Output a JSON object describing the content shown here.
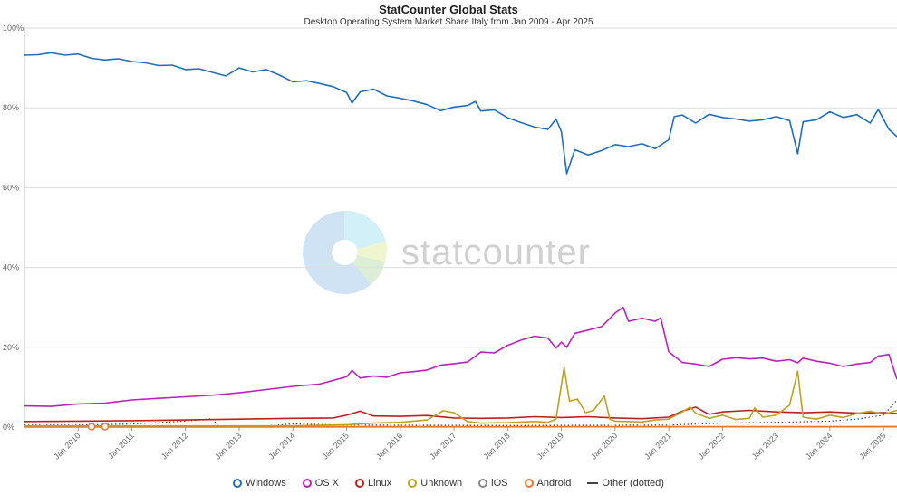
{
  "chart_data": {
    "type": "line",
    "title": "StatCounter Global Stats",
    "subtitle": "Desktop Operating System Market Share Italy from Jan 2009 - Apr 2025",
    "watermark": "statcounter",
    "ylim": [
      0,
      100
    ],
    "y_ticks": [
      "0%",
      "20%",
      "40%",
      "60%",
      "80%",
      "100%"
    ],
    "y_tick_values": [
      0,
      20,
      40,
      60,
      80,
      100
    ],
    "x_range": [
      2009.0,
      2025.25
    ],
    "x_ticks": [
      "Jan 2010",
      "Jan 2011",
      "Jan 2012",
      "Jan 2013",
      "Jan 2014",
      "Jan 2015",
      "Jan 2016",
      "Jan 2017",
      "Jan 2018",
      "Jan 2019",
      "Jan 2020",
      "Jan 2021",
      "Jan 2022",
      "Jan 2023",
      "Jan 2024",
      "Jan 2025"
    ],
    "x_tick_values": [
      2010,
      2011,
      2012,
      2013,
      2014,
      2015,
      2016,
      2017,
      2018,
      2019,
      2020,
      2021,
      2022,
      2023,
      2024,
      2025
    ],
    "grid": true,
    "legend_position": "bottom",
    "series": [
      {
        "name": "Windows",
        "color": "#1f6fbf",
        "marker": "circle",
        "points": [
          [
            2009.0,
            93.2
          ],
          [
            2009.25,
            93.3
          ],
          [
            2009.5,
            93.8
          ],
          [
            2009.75,
            93.2
          ],
          [
            2010.0,
            93.5
          ],
          [
            2010.25,
            92.4
          ],
          [
            2010.5,
            92.0
          ],
          [
            2010.75,
            92.3
          ],
          [
            2011.0,
            91.6
          ],
          [
            2011.25,
            91.3
          ],
          [
            2011.5,
            90.6
          ],
          [
            2011.75,
            90.7
          ],
          [
            2012.0,
            89.6
          ],
          [
            2012.25,
            89.8
          ],
          [
            2012.5,
            88.9
          ],
          [
            2012.75,
            88.0
          ],
          [
            2013.0,
            90.0
          ],
          [
            2013.25,
            89.0
          ],
          [
            2013.5,
            89.6
          ],
          [
            2013.75,
            88.2
          ],
          [
            2014.0,
            86.5
          ],
          [
            2014.25,
            86.8
          ],
          [
            2014.5,
            86.1
          ],
          [
            2014.75,
            85.3
          ],
          [
            2015.0,
            83.8
          ],
          [
            2015.1,
            81.2
          ],
          [
            2015.25,
            84.0
          ],
          [
            2015.5,
            84.7
          ],
          [
            2015.75,
            83.0
          ],
          [
            2016.0,
            82.4
          ],
          [
            2016.25,
            81.7
          ],
          [
            2016.5,
            80.8
          ],
          [
            2016.75,
            79.3
          ],
          [
            2017.0,
            80.2
          ],
          [
            2017.25,
            80.6
          ],
          [
            2017.4,
            81.6
          ],
          [
            2017.5,
            79.2
          ],
          [
            2017.75,
            79.5
          ],
          [
            2018.0,
            77.5
          ],
          [
            2018.25,
            76.3
          ],
          [
            2018.5,
            75.2
          ],
          [
            2018.75,
            74.6
          ],
          [
            2018.9,
            77.2
          ],
          [
            2019.0,
            74.0
          ],
          [
            2019.1,
            63.5
          ],
          [
            2019.25,
            69.5
          ],
          [
            2019.5,
            68.2
          ],
          [
            2019.75,
            69.3
          ],
          [
            2020.0,
            70.8
          ],
          [
            2020.25,
            70.3
          ],
          [
            2020.5,
            71.0
          ],
          [
            2020.75,
            69.8
          ],
          [
            2021.0,
            72.0
          ],
          [
            2021.1,
            77.8
          ],
          [
            2021.25,
            78.2
          ],
          [
            2021.5,
            76.2
          ],
          [
            2021.75,
            78.4
          ],
          [
            2022.0,
            77.6
          ],
          [
            2022.25,
            77.2
          ],
          [
            2022.5,
            76.7
          ],
          [
            2022.75,
            77.0
          ],
          [
            2023.0,
            77.8
          ],
          [
            2023.25,
            76.8
          ],
          [
            2023.4,
            68.5
          ],
          [
            2023.5,
            76.5
          ],
          [
            2023.75,
            77.0
          ],
          [
            2024.0,
            79.0
          ],
          [
            2024.25,
            77.6
          ],
          [
            2024.5,
            78.3
          ],
          [
            2024.75,
            76.2
          ],
          [
            2024.9,
            79.6
          ],
          [
            2025.1,
            74.6
          ],
          [
            2025.25,
            72.8
          ]
        ]
      },
      {
        "name": "OS X",
        "color": "#bf1fbf",
        "marker": "circle",
        "points": [
          [
            2009.0,
            5.3
          ],
          [
            2009.5,
            5.2
          ],
          [
            2010.0,
            5.8
          ],
          [
            2010.5,
            6.0
          ],
          [
            2011.0,
            6.8
          ],
          [
            2011.5,
            7.2
          ],
          [
            2012.0,
            7.6
          ],
          [
            2012.5,
            8.0
          ],
          [
            2013.0,
            8.6
          ],
          [
            2013.5,
            9.4
          ],
          [
            2014.0,
            10.2
          ],
          [
            2014.5,
            10.8
          ],
          [
            2015.0,
            12.6
          ],
          [
            2015.1,
            14.2
          ],
          [
            2015.25,
            12.3
          ],
          [
            2015.5,
            12.8
          ],
          [
            2015.75,
            12.5
          ],
          [
            2016.0,
            13.6
          ],
          [
            2016.25,
            13.9
          ],
          [
            2016.5,
            14.3
          ],
          [
            2016.75,
            15.5
          ],
          [
            2017.0,
            15.9
          ],
          [
            2017.25,
            16.3
          ],
          [
            2017.5,
            18.8
          ],
          [
            2017.75,
            18.6
          ],
          [
            2018.0,
            20.5
          ],
          [
            2018.25,
            21.8
          ],
          [
            2018.5,
            22.8
          ],
          [
            2018.75,
            22.3
          ],
          [
            2018.9,
            19.8
          ],
          [
            2019.0,
            21.3
          ],
          [
            2019.1,
            20.0
          ],
          [
            2019.25,
            23.5
          ],
          [
            2019.5,
            24.3
          ],
          [
            2019.75,
            25.2
          ],
          [
            2020.0,
            28.6
          ],
          [
            2020.15,
            30.0
          ],
          [
            2020.25,
            26.5
          ],
          [
            2020.5,
            27.3
          ],
          [
            2020.75,
            26.5
          ],
          [
            2020.85,
            27.4
          ],
          [
            2021.0,
            18.9
          ],
          [
            2021.25,
            16.2
          ],
          [
            2021.5,
            15.8
          ],
          [
            2021.75,
            15.2
          ],
          [
            2022.0,
            17.0
          ],
          [
            2022.25,
            17.4
          ],
          [
            2022.5,
            17.1
          ],
          [
            2022.75,
            17.3
          ],
          [
            2023.0,
            16.5
          ],
          [
            2023.25,
            16.9
          ],
          [
            2023.4,
            16.1
          ],
          [
            2023.5,
            17.3
          ],
          [
            2023.75,
            16.5
          ],
          [
            2024.0,
            16.0
          ],
          [
            2024.25,
            15.2
          ],
          [
            2024.5,
            15.8
          ],
          [
            2024.75,
            16.2
          ],
          [
            2024.9,
            17.8
          ],
          [
            2025.1,
            18.2
          ],
          [
            2025.25,
            12.0
          ]
        ]
      },
      {
        "name": "Linux",
        "color": "#bf1f1f",
        "marker": "circle",
        "points": [
          [
            2009.0,
            1.4
          ],
          [
            2010.0,
            1.5
          ],
          [
            2011.0,
            1.6
          ],
          [
            2012.0,
            1.8
          ],
          [
            2013.0,
            2.0
          ],
          [
            2014.0,
            2.2
          ],
          [
            2014.75,
            2.3
          ],
          [
            2015.0,
            3.0
          ],
          [
            2015.25,
            4.0
          ],
          [
            2015.5,
            2.8
          ],
          [
            2016.0,
            2.7
          ],
          [
            2016.5,
            2.9
          ],
          [
            2017.0,
            2.3
          ],
          [
            2017.5,
            2.2
          ],
          [
            2018.0,
            2.3
          ],
          [
            2018.5,
            2.6
          ],
          [
            2019.0,
            2.4
          ],
          [
            2019.5,
            2.6
          ],
          [
            2020.0,
            2.3
          ],
          [
            2020.5,
            2.1
          ],
          [
            2021.0,
            2.5
          ],
          [
            2021.25,
            4.0
          ],
          [
            2021.5,
            5.0
          ],
          [
            2021.75,
            3.2
          ],
          [
            2022.0,
            3.8
          ],
          [
            2022.5,
            4.2
          ],
          [
            2023.0,
            3.8
          ],
          [
            2023.5,
            3.6
          ],
          [
            2024.0,
            3.8
          ],
          [
            2024.5,
            3.5
          ],
          [
            2025.0,
            3.6
          ],
          [
            2025.25,
            3.4
          ]
        ]
      },
      {
        "name": "Unknown",
        "color": "#bfa21f",
        "marker": "circle",
        "points": [
          [
            2009.0,
            0.3
          ],
          [
            2012.0,
            0.3
          ],
          [
            2014.0,
            0.3
          ],
          [
            2015.0,
            0.6
          ],
          [
            2015.5,
            1.0
          ],
          [
            2016.0,
            1.2
          ],
          [
            2016.5,
            1.8
          ],
          [
            2016.8,
            4.1
          ],
          [
            2017.0,
            3.6
          ],
          [
            2017.25,
            1.4
          ],
          [
            2017.5,
            1.0
          ],
          [
            2018.0,
            1.1
          ],
          [
            2018.5,
            1.4
          ],
          [
            2018.75,
            1.2
          ],
          [
            2018.9,
            2.0
          ],
          [
            2019.05,
            15.0
          ],
          [
            2019.15,
            6.5
          ],
          [
            2019.3,
            7.0
          ],
          [
            2019.45,
            3.6
          ],
          [
            2019.6,
            4.2
          ],
          [
            2019.8,
            7.8
          ],
          [
            2019.9,
            2.0
          ],
          [
            2020.0,
            1.5
          ],
          [
            2020.5,
            1.3
          ],
          [
            2020.75,
            1.8
          ],
          [
            2021.0,
            2.0
          ],
          [
            2021.25,
            3.8
          ],
          [
            2021.4,
            5.0
          ],
          [
            2021.5,
            3.5
          ],
          [
            2021.75,
            2.2
          ],
          [
            2022.0,
            3.0
          ],
          [
            2022.25,
            1.9
          ],
          [
            2022.5,
            2.2
          ],
          [
            2022.6,
            4.8
          ],
          [
            2022.75,
            2.5
          ],
          [
            2023.0,
            3.0
          ],
          [
            2023.25,
            5.5
          ],
          [
            2023.4,
            14.0
          ],
          [
            2023.5,
            2.5
          ],
          [
            2023.75,
            2.0
          ],
          [
            2024.0,
            3.0
          ],
          [
            2024.25,
            2.4
          ],
          [
            2024.5,
            3.4
          ],
          [
            2024.75,
            4.0
          ],
          [
            2025.0,
            3.2
          ],
          [
            2025.25,
            4.2
          ]
        ]
      },
      {
        "name": "iOS",
        "color": "#888888",
        "marker": "circle",
        "points": [
          [
            2009.0,
            0.0
          ],
          [
            2025.25,
            0.1
          ]
        ]
      },
      {
        "name": "Android",
        "color": "#e8792b",
        "marker": "circle",
        "points": [
          [
            2009.0,
            0.1
          ],
          [
            2010.25,
            0.1
          ],
          [
            2010.5,
            0.1
          ],
          [
            2025.25,
            0.1
          ]
        ]
      },
      {
        "name": "Other (dotted)",
        "color": "#444444",
        "marker": "line",
        "points": [
          [
            2009.0,
            0.5
          ],
          [
            2010.0,
            0.5
          ],
          [
            2011.0,
            0.8
          ],
          [
            2012.0,
            1.5
          ],
          [
            2012.5,
            2.1
          ],
          [
            2012.6,
            0.3
          ],
          [
            2013.5,
            0.3
          ],
          [
            2014.0,
            0.8
          ],
          [
            2015.0,
            0.5
          ],
          [
            2018.0,
            0.4
          ],
          [
            2021.0,
            0.5
          ],
          [
            2022.0,
            1.0
          ],
          [
            2023.0,
            1.2
          ],
          [
            2024.0,
            1.5
          ],
          [
            2024.5,
            2.0
          ],
          [
            2025.0,
            3.0
          ],
          [
            2025.25,
            6.8
          ]
        ]
      }
    ]
  }
}
